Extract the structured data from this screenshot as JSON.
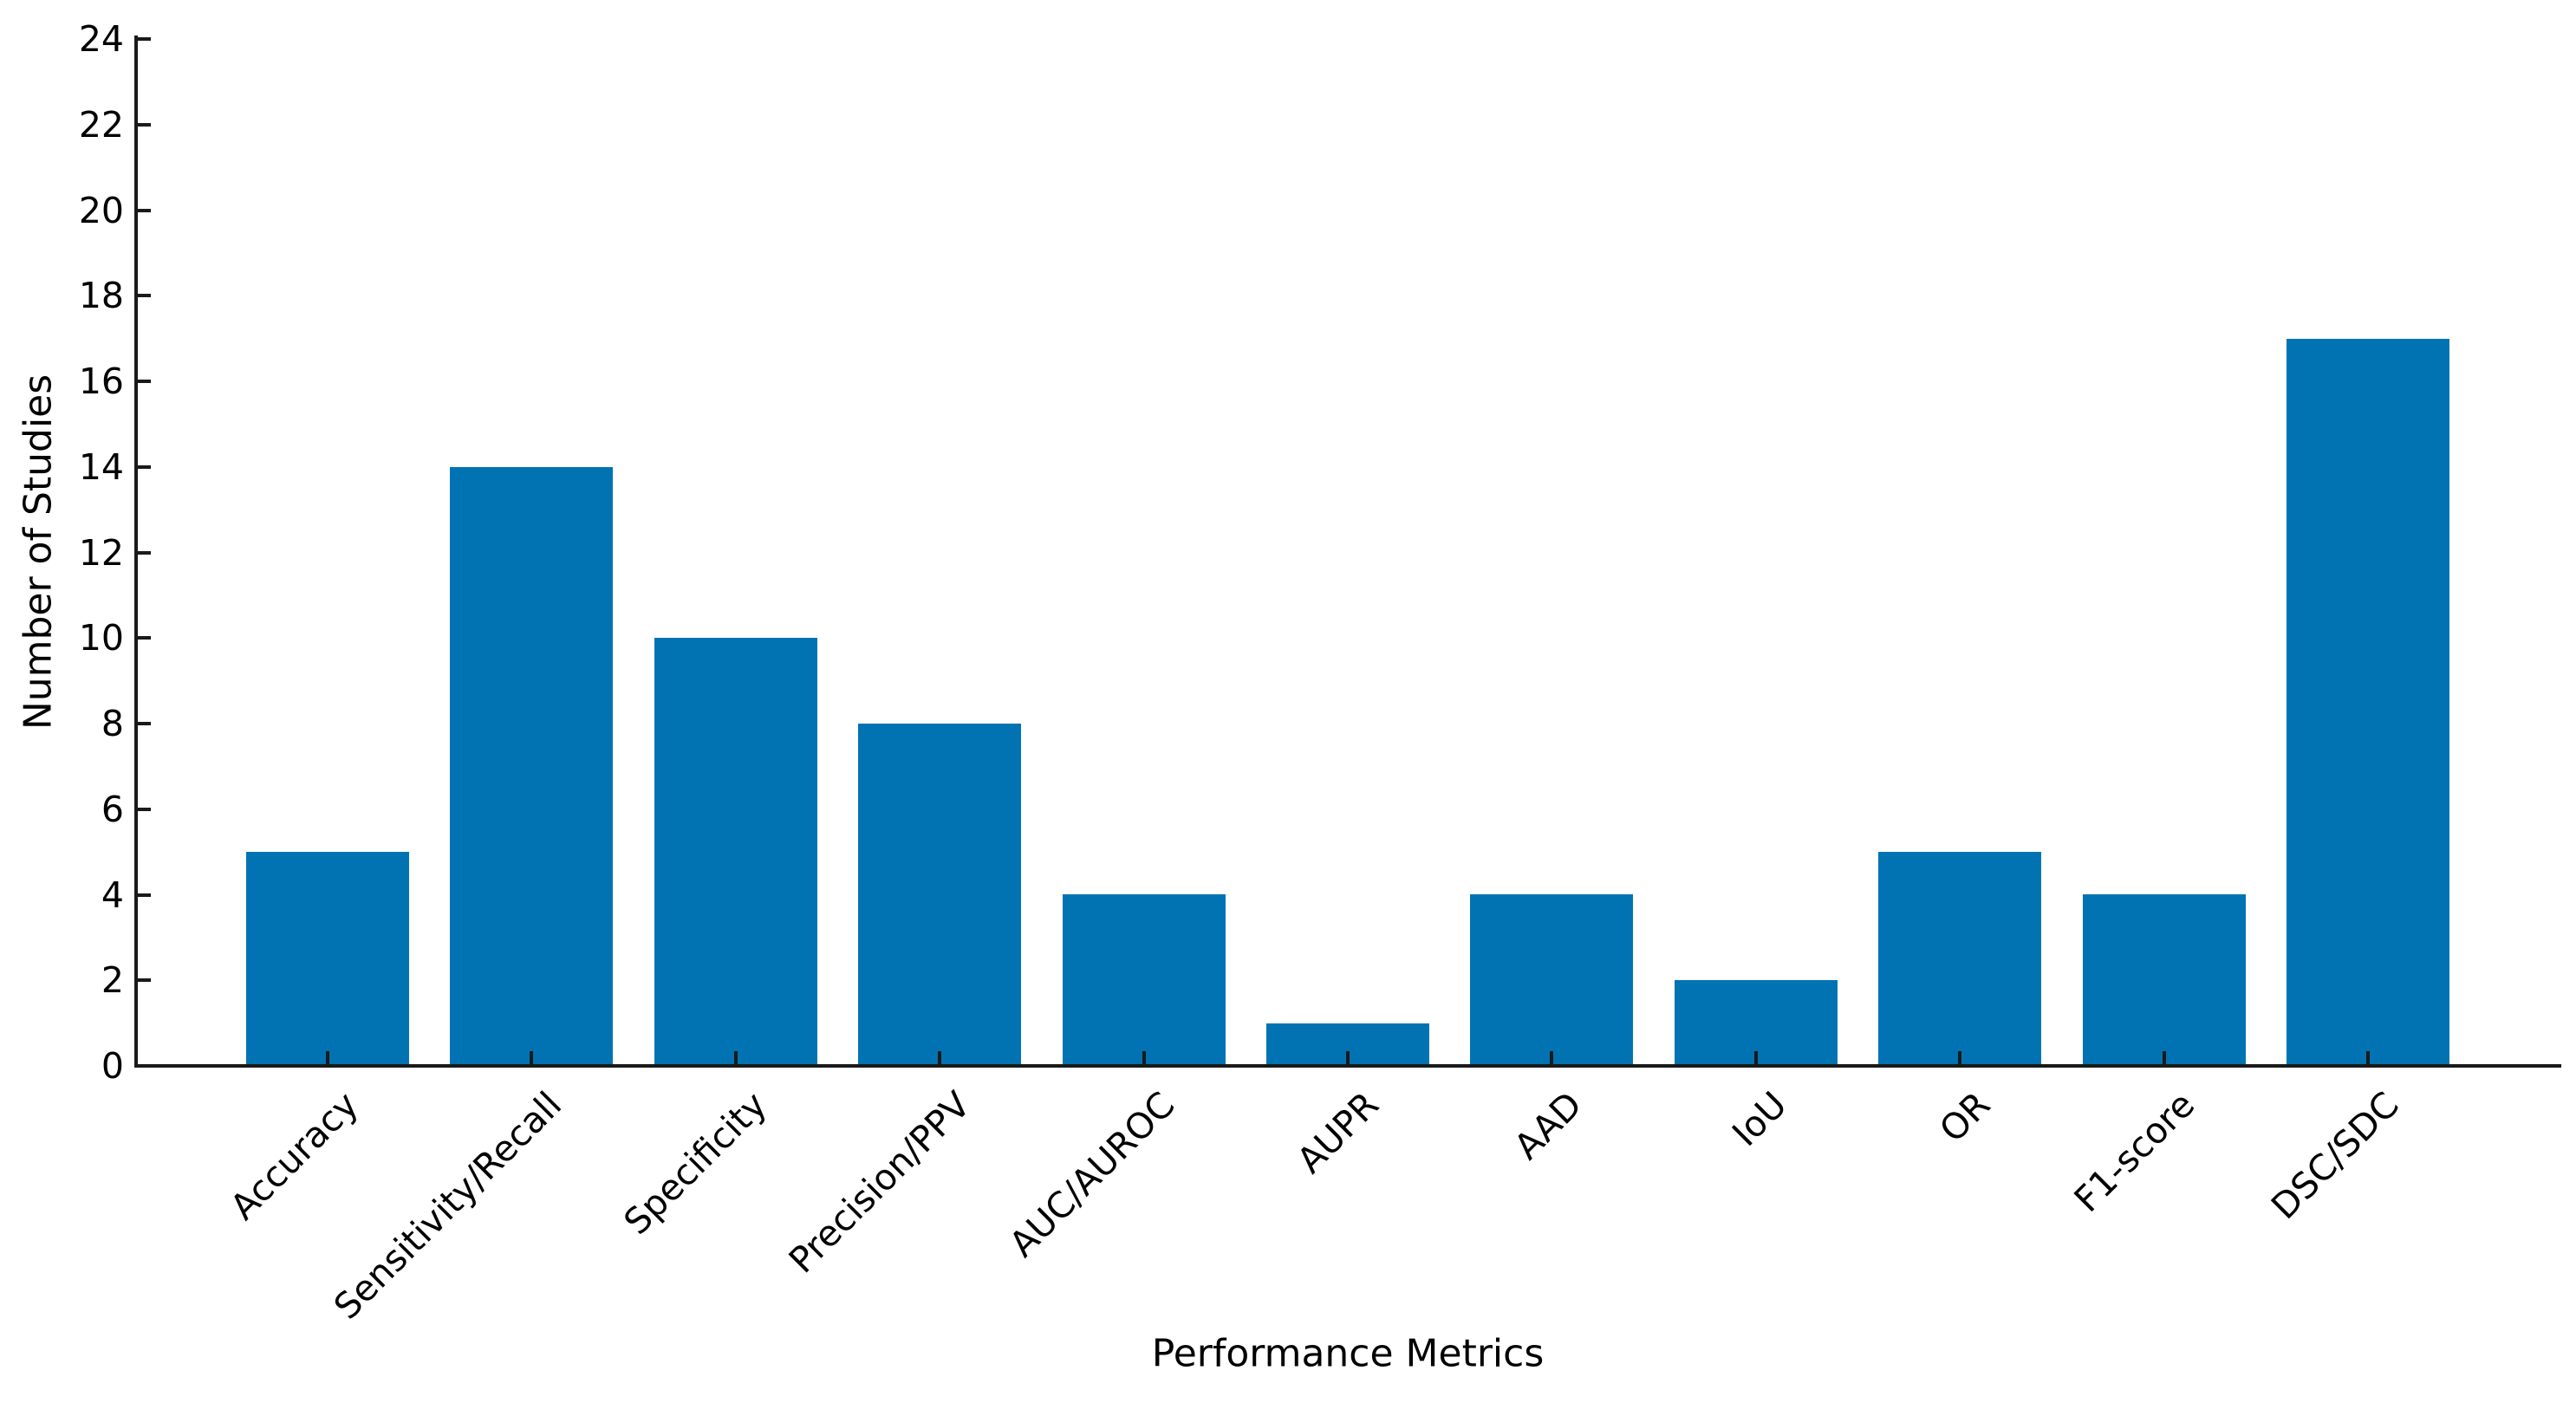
{
  "figure": {
    "background_color": "#ffffff",
    "text_color": "#000000",
    "axis_color": "#1a1a1a"
  },
  "chart_data": {
    "type": "bar",
    "title": "",
    "xlabel": "Performance Metrics",
    "ylabel": "Number of Studies",
    "categories": [
      "Accuracy",
      "Sensitivity/Recall",
      "Specificity",
      "Precision/PPV",
      "AUC/AUROC",
      "AUPR",
      "AAD",
      "IoU",
      "OR",
      "F1-score",
      "DSC/SDC"
    ],
    "values": [
      5,
      14,
      10,
      8,
      4,
      1,
      4,
      2,
      5,
      4,
      17
    ],
    "yticks": [
      0,
      2,
      4,
      6,
      8,
      10,
      12,
      14,
      16,
      18,
      20,
      22,
      24
    ],
    "ylim": [
      0,
      24
    ],
    "bar_color": "#0173b2",
    "bar_width_ratio": 0.8,
    "x_tick_rotation_deg": 45,
    "tick_direction": "in",
    "grid": false,
    "legend": false,
    "spines": [
      "left",
      "bottom"
    ]
  }
}
